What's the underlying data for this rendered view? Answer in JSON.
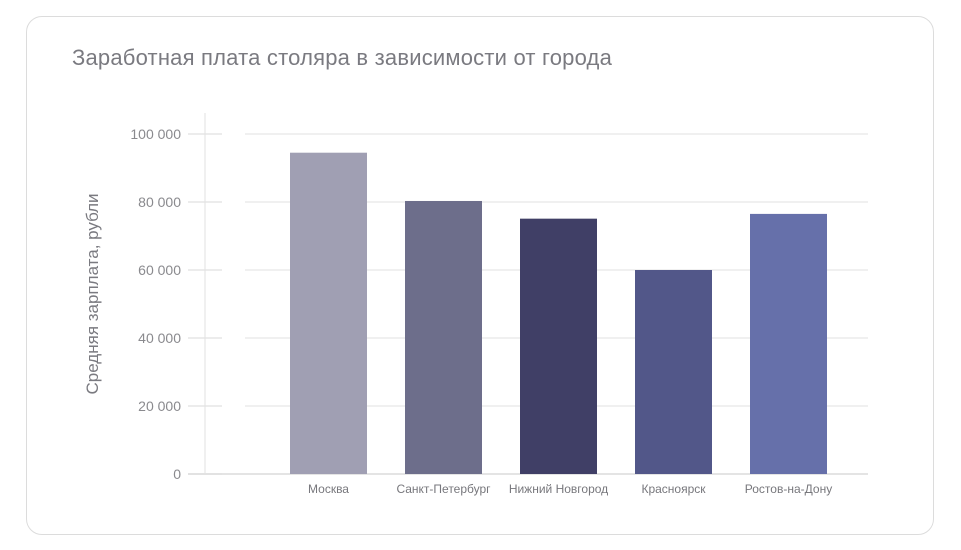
{
  "chart_data": {
    "type": "bar",
    "title": "Заработная плата столяра в зависимости от города",
    "xlabel": "",
    "ylabel": "Средняя зарплата, рубли",
    "ylim": [
      0,
      100000
    ],
    "yticks": [
      0,
      20000,
      40000,
      60000,
      80000,
      100000
    ],
    "ytick_labels": [
      "0",
      "20 000",
      "40 000",
      "60 000",
      "80 000",
      "100 000"
    ],
    "categories": [
      "Москва",
      "Санкт-Петербург",
      "Нижний Новгород",
      "Красноярск",
      "Ростов-на-Дону"
    ],
    "values": [
      94500,
      80300,
      75100,
      60000,
      76500
    ],
    "colors": [
      "#a09fb3",
      "#6d6e8b",
      "#403f66",
      "#525789",
      "#6670aa"
    ],
    "grid": true
  }
}
